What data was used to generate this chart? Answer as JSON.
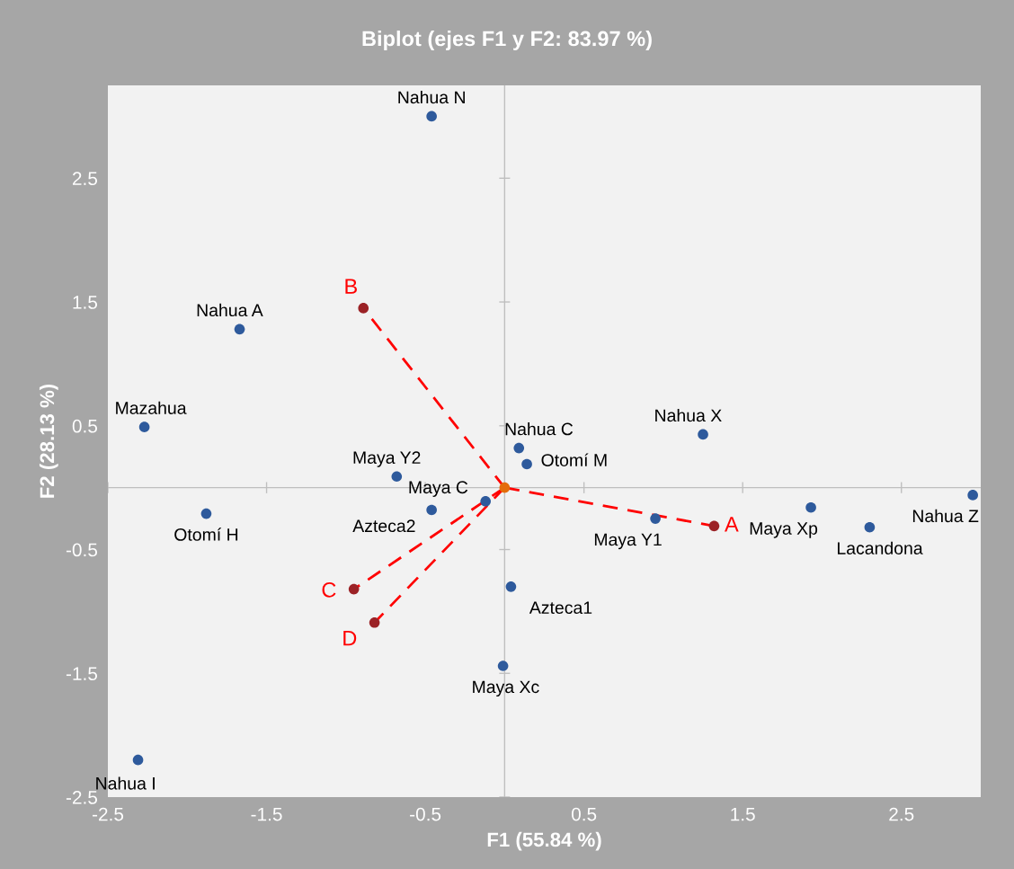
{
  "chart_data": {
    "type": "scatter",
    "title": "Biplot (ejes F1 y F2: 83.97 %)",
    "xlabel": "F1 (55.84 %)",
    "ylabel": "F2 (28.13 %)",
    "xlim": [
      -2.5,
      3.0
    ],
    "ylim": [
      -2.5,
      3.25
    ],
    "xticks": [
      -2.5,
      -1.5,
      -0.5,
      0.5,
      1.5,
      2.5
    ],
    "yticks": [
      -2.5,
      -1.5,
      -0.5,
      0.5,
      1.5,
      2.5
    ],
    "grid": false,
    "line_style": "dashed",
    "series": [
      {
        "type": "line",
        "marker": "none",
        "color": "#ff0000",
        "x": [
          0,
          1.32
        ],
        "values": [
          0,
          -0.31
        ]
      },
      {
        "type": "line",
        "marker": "none",
        "color": "#ff0000",
        "x": [
          0,
          -0.89
        ],
        "values": [
          0,
          1.45
        ]
      },
      {
        "type": "line",
        "marker": "none",
        "color": "#ff0000",
        "x": [
          0,
          -0.95
        ],
        "values": [
          0,
          -0.82
        ]
      },
      {
        "type": "line",
        "marker": "none",
        "color": "#ff0000",
        "x": [
          0,
          -0.82
        ],
        "values": [
          0,
          -1.09
        ]
      },
      {
        "marker": "circle",
        "color": "#2e5a9c",
        "x": [
          -0.46,
          -1.67,
          -2.27,
          1.25,
          0.09,
          0.14,
          -0.68,
          -0.12,
          -1.88,
          -0.46,
          0.95,
          1.93,
          2.3,
          2.95,
          0.04,
          -0.01,
          -2.31
        ],
        "values": [
          3.0,
          1.28,
          0.49,
          0.43,
          0.32,
          0.19,
          0.09,
          -0.11,
          -0.21,
          -0.18,
          -0.25,
          -0.16,
          -0.32,
          -0.06,
          -0.8,
          -1.44,
          -2.2
        ]
      },
      {
        "marker": "circle",
        "color": "#9b2226",
        "x": [
          1.32,
          -0.89,
          -0.95,
          -0.82
        ],
        "values": [
          -0.31,
          1.45,
          -0.82,
          -1.09
        ]
      },
      {
        "marker": "circle",
        "color": "#e46c0a",
        "x": [
          0
        ],
        "values": [
          0
        ]
      }
    ],
    "annotations": [
      {
        "text": "Nahua N",
        "x": -0.46,
        "y": 3.0
      },
      {
        "text": "Nahua A",
        "x": -1.67,
        "y": 1.28
      },
      {
        "text": "Mazahua",
        "x": -2.27,
        "y": 0.49
      },
      {
        "text": "Nahua X",
        "x": 1.25,
        "y": 0.43
      },
      {
        "text": "Nahua C",
        "x": 0.09,
        "y": 0.32
      },
      {
        "text": "Otomí M",
        "x": 0.14,
        "y": 0.19
      },
      {
        "text": "Maya Y2",
        "x": -0.68,
        "y": 0.09
      },
      {
        "text": "Maya C",
        "x": -0.12,
        "y": -0.11
      },
      {
        "text": "Otomí H",
        "x": -1.88,
        "y": -0.21
      },
      {
        "text": "Azteca2",
        "x": -0.46,
        "y": -0.18
      },
      {
        "text": "Maya Y1",
        "x": 0.95,
        "y": -0.25
      },
      {
        "text": "Maya Xp",
        "x": 1.93,
        "y": -0.16
      },
      {
        "text": "Lacandona",
        "x": 2.3,
        "y": -0.32
      },
      {
        "text": "Nahua Z",
        "x": 2.95,
        "y": -0.06
      },
      {
        "text": "Azteca1",
        "x": 0.04,
        "y": -0.8
      },
      {
        "text": "Maya Xc",
        "x": -0.01,
        "y": -1.44
      },
      {
        "text": "Nahua I",
        "x": -2.31,
        "y": -2.2
      },
      {
        "text": "A",
        "x": 1.32,
        "y": -0.31
      },
      {
        "text": "B",
        "x": -0.89,
        "y": 1.45
      },
      {
        "text": "C",
        "x": -0.95,
        "y": -0.82
      },
      {
        "text": "D",
        "x": -0.82,
        "y": -1.09
      }
    ]
  }
}
